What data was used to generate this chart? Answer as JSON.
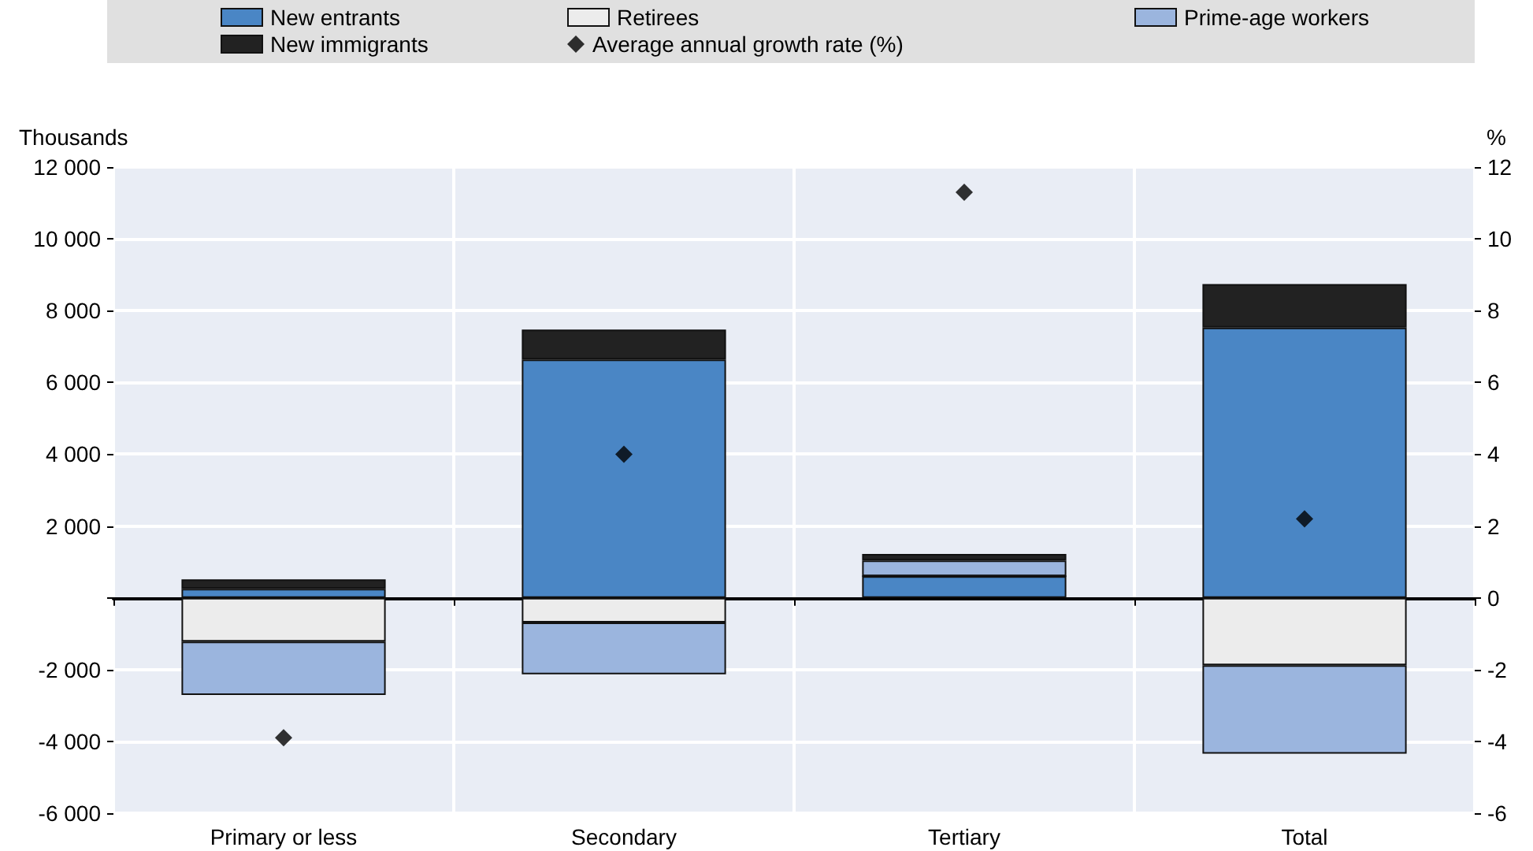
{
  "chart_data": {
    "type": "bar",
    "stacked": true,
    "ylabel": "Thousands",
    "y2label": "%",
    "categories": [
      "Primary or less",
      "Secondary",
      "Tertiary",
      "Total"
    ],
    "series": [
      {
        "name": "New entrants",
        "color": "#4a86c5",
        "values": [
          250,
          6640,
          600,
          7530
        ]
      },
      {
        "name": "Retirees",
        "color": "#ececec",
        "values": [
          -1220,
          -690,
          0,
          -1880
        ]
      },
      {
        "name": "Prime-age workers",
        "color": "#9bb5de",
        "values": [
          -1490,
          -1440,
          440,
          -2460
        ]
      },
      {
        "name": "New immigrants",
        "color": "#222222",
        "values": [
          265,
          830,
          180,
          1210
        ]
      },
      {
        "name": "Average annual growth rate (%)",
        "type": "scatter",
        "axis": "y2",
        "marker": "diamond",
        "color": "#000000",
        "values": [
          -3.9,
          4.0,
          11.3,
          2.2
        ]
      }
    ],
    "ylim": [
      -6000,
      12000
    ],
    "yticks": [
      {
        "value": -6000,
        "label": "-6 000"
      },
      {
        "value": -4000,
        "label": "-4 000"
      },
      {
        "value": -2000,
        "label": "-2 000"
      },
      {
        "value": 0,
        "label": null
      },
      {
        "value": 2000,
        "label": "2 000"
      },
      {
        "value": 4000,
        "label": "4 000"
      },
      {
        "value": 6000,
        "label": "6 000"
      },
      {
        "value": 8000,
        "label": "8 000"
      },
      {
        "value": 10000,
        "label": "10 000"
      },
      {
        "value": 12000,
        "label": "12 000"
      }
    ],
    "y2lim": [
      -6,
      12
    ],
    "y2ticks": [
      -6,
      -4,
      -2,
      0,
      2,
      4,
      6,
      8,
      10,
      12
    ],
    "grid": true,
    "legend": "top"
  }
}
